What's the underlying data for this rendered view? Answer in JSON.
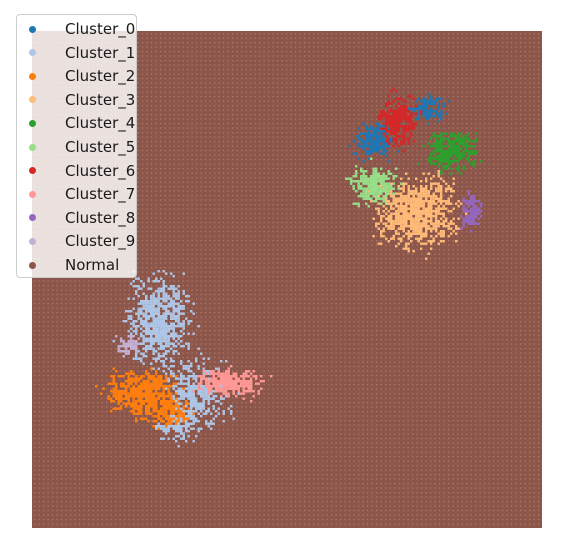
{
  "chart_data": {
    "type": "scatter",
    "title": "",
    "xlabel": "",
    "ylabel": "",
    "axes_visible": false,
    "grid": false,
    "legend_position": "top-left",
    "background_series": "Normal",
    "series": [
      {
        "name": "Cluster_0",
        "color": "#1f77b4",
        "region": "upper-right blob, top-left and top-right lobes"
      },
      {
        "name": "Cluster_1",
        "color": "#aec7e8",
        "region": "lower-left blob, upper and central part"
      },
      {
        "name": "Cluster_2",
        "color": "#ff7f0e",
        "region": "lower-left blob, bottom-left part"
      },
      {
        "name": "Cluster_3",
        "color": "#ffbb78",
        "region": "upper-right blob, lower central part"
      },
      {
        "name": "Cluster_4",
        "color": "#2ca02c",
        "region": "upper-right blob, right part"
      },
      {
        "name": "Cluster_5",
        "color": "#98df8a",
        "region": "upper-right blob, left part"
      },
      {
        "name": "Cluster_6",
        "color": "#d62728",
        "region": "upper-right blob, top part"
      },
      {
        "name": "Cluster_7",
        "color": "#ff9896",
        "region": "lower-left blob, right lobe"
      },
      {
        "name": "Cluster_8",
        "color": "#9467bd",
        "region": "upper-right blob, far right part"
      },
      {
        "name": "Cluster_9",
        "color": "#c5b0d5",
        "region": "lower-left blob, small left part"
      },
      {
        "name": "Normal",
        "color": "#8c564b",
        "region": "full square grid background"
      }
    ]
  }
}
